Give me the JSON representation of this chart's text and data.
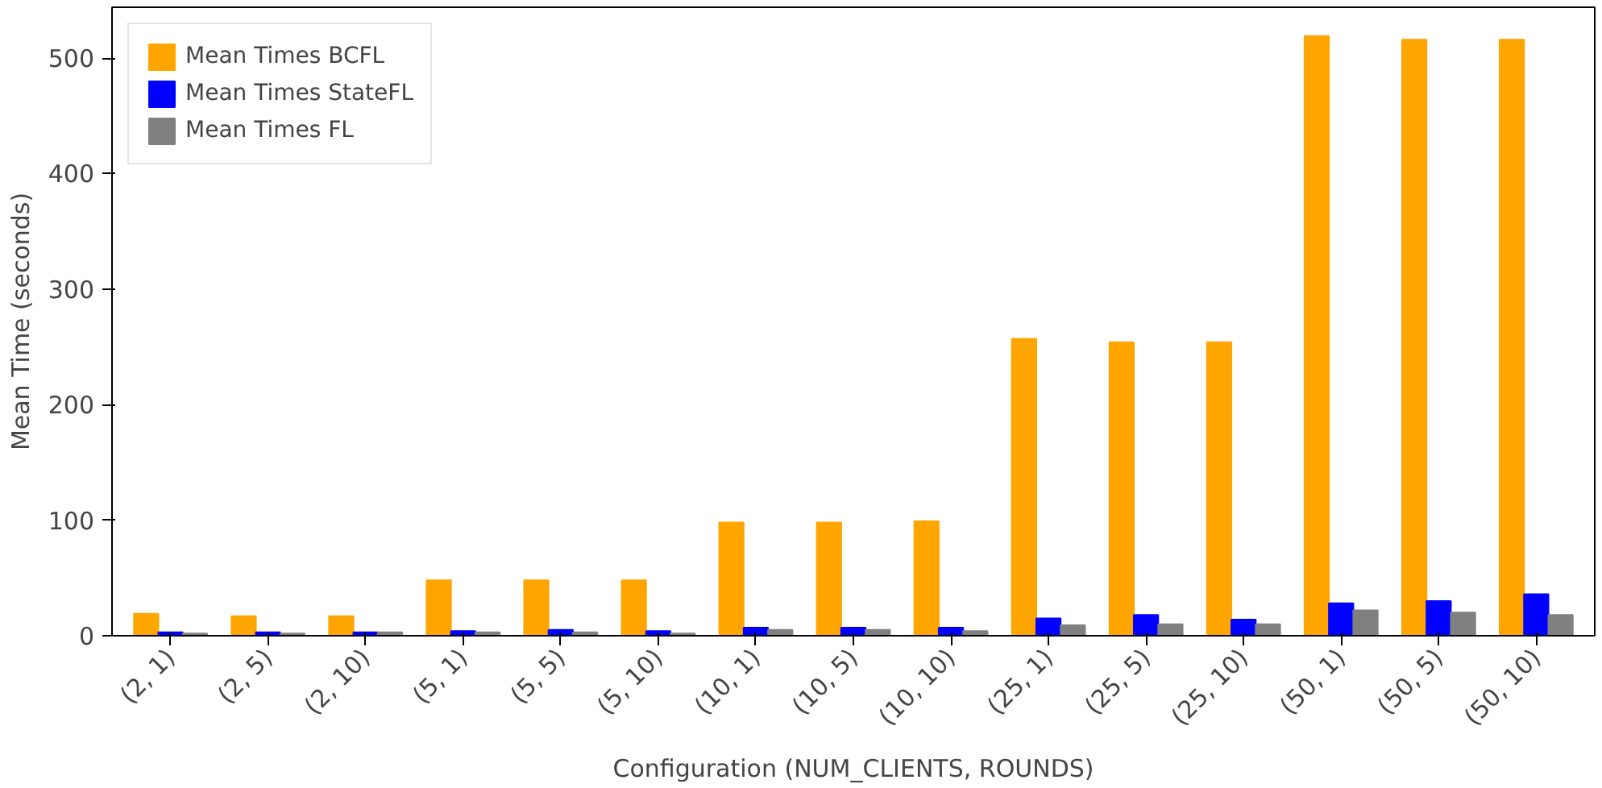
{
  "chart_data": {
    "type": "bar",
    "xlabel": "Configuration (NUM_CLIENTS, ROUNDS)",
    "ylabel": "Mean Time (seconds)",
    "categories": [
      "(2, 1)",
      "(2, 5)",
      "(2, 10)",
      "(5, 1)",
      "(5, 5)",
      "(5, 10)",
      "(10, 1)",
      "(10, 5)",
      "(10, 10)",
      "(25, 1)",
      "(25, 5)",
      "(25, 10)",
      "(50, 1)",
      "(50, 5)",
      "(50, 10)"
    ],
    "series": [
      {
        "name": "Mean Times BCFL",
        "color": "#ffa500",
        "values": [
          19,
          17,
          17,
          48,
          48,
          48,
          98,
          98,
          99,
          257,
          254,
          254,
          519,
          516,
          516
        ]
      },
      {
        "name": "Mean Times StateFL",
        "color": "#0000ff",
        "values": [
          3,
          3,
          3,
          4,
          5,
          4,
          7,
          7,
          7,
          15,
          18,
          14,
          28,
          30,
          36
        ]
      },
      {
        "name": "Mean Times FL",
        "color": "#808080",
        "values": [
          2,
          2,
          3,
          3,
          3,
          2,
          5,
          5,
          4,
          9,
          10,
          10,
          22,
          20,
          18
        ]
      }
    ],
    "ylim": [
      0,
      544
    ],
    "yticks": [
      0,
      100,
      200,
      300,
      400,
      500
    ],
    "grid": false,
    "legend": "top left"
  }
}
